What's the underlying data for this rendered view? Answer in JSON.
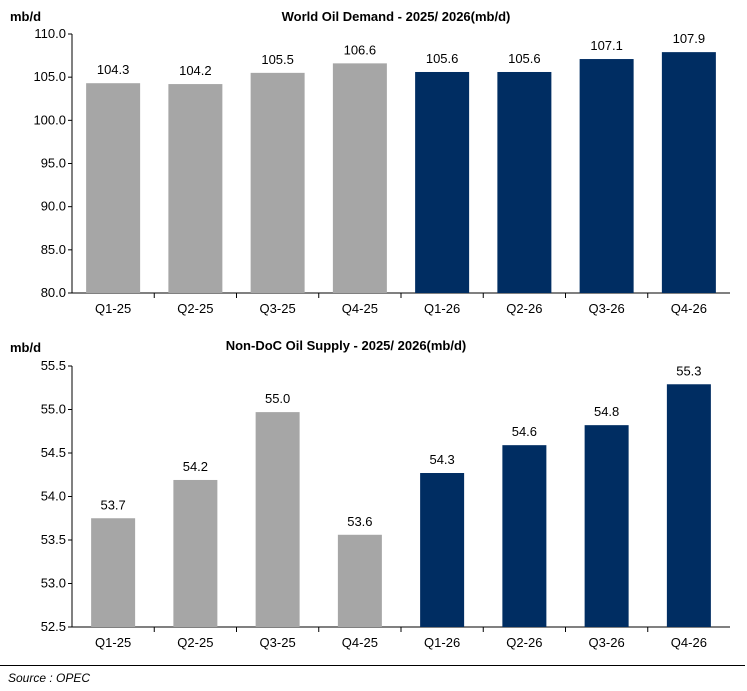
{
  "colors": {
    "gray": "#a6a6a6",
    "navy": "#002d62"
  },
  "source": "Source : OPEC",
  "chart_data": [
    {
      "type": "bar",
      "title": "World Oil Demand - 2025/ 2026(mb/d)",
      "ylabel": "mb/d",
      "categories": [
        "Q1-25",
        "Q2-25",
        "Q3-25",
        "Q4-25",
        "Q1-26",
        "Q2-26",
        "Q3-26",
        "Q4-26"
      ],
      "values": [
        104.3,
        104.2,
        105.5,
        106.6,
        105.6,
        105.6,
        107.1,
        107.9
      ],
      "labels": [
        "104.3",
        "104.2",
        "105.5",
        "106.6",
        "105.6",
        "105.6",
        "107.1",
        "107.9"
      ],
      "bar_colors": [
        "gray",
        "gray",
        "gray",
        "gray",
        "navy",
        "navy",
        "navy",
        "navy"
      ],
      "ylim": [
        80,
        110
      ],
      "yticks": [
        "80.0",
        "85.0",
        "90.0",
        "95.0",
        "100.0",
        "105.0",
        "110.0"
      ],
      "grid": false
    },
    {
      "type": "bar",
      "title": "Non-DoC Oil Supply - 2025/ 2026(mb/d)",
      "ylabel": "mb/d",
      "categories": [
        "Q1-25",
        "Q2-25",
        "Q3-25",
        "Q4-25",
        "Q1-26",
        "Q2-26",
        "Q3-26",
        "Q4-26"
      ],
      "values": [
        53.75,
        54.19,
        54.97,
        53.56,
        54.27,
        54.59,
        54.82,
        55.29
      ],
      "labels": [
        "53.7",
        "54.2",
        "55.0",
        "53.6",
        "54.3",
        "54.6",
        "54.8",
        "55.3"
      ],
      "bar_colors": [
        "gray",
        "gray",
        "gray",
        "gray",
        "navy",
        "navy",
        "navy",
        "navy"
      ],
      "ylim": [
        52.5,
        55.5
      ],
      "yticks": [
        "52.5",
        "53.0",
        "53.5",
        "54.0",
        "54.5",
        "55.0",
        "55.5"
      ],
      "grid": false
    }
  ]
}
